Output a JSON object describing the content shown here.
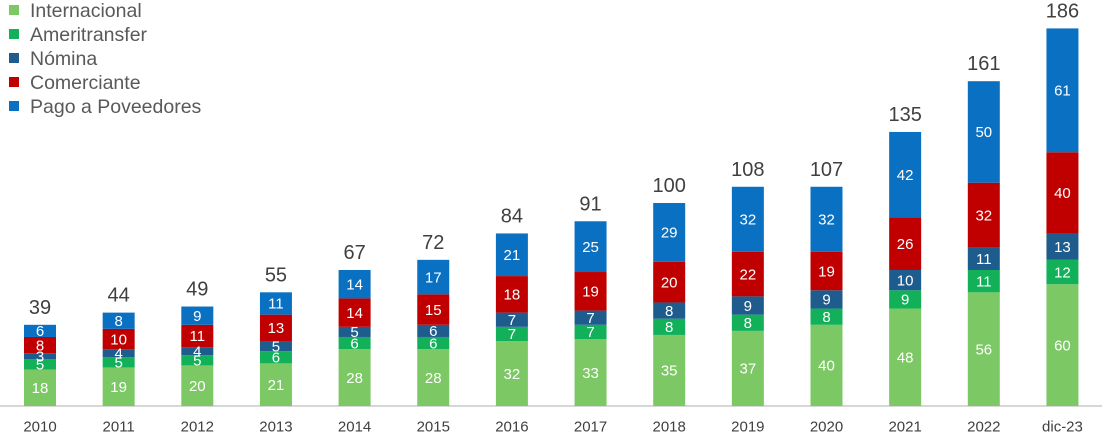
{
  "chart_data": {
    "type": "bar",
    "stacked": true,
    "categories": [
      "2010",
      "2011",
      "2012",
      "2013",
      "2014",
      "2015",
      "2016",
      "2017",
      "2018",
      "2019",
      "2020",
      "2021",
      "2022",
      "dic-23"
    ],
    "series": [
      {
        "name": "Internacional",
        "color": "#7CC865",
        "values": [
          18,
          19,
          20,
          21,
          28,
          28,
          32,
          33,
          35,
          37,
          40,
          48,
          56,
          60
        ]
      },
      {
        "name": "Ameritransfer",
        "color": "#13B05A",
        "values": [
          5,
          5,
          5,
          6,
          6,
          6,
          7,
          7,
          8,
          8,
          8,
          9,
          11,
          12
        ]
      },
      {
        "name": "Nómina",
        "color": "#1F5C8E",
        "values": [
          3,
          4,
          4,
          5,
          5,
          6,
          7,
          7,
          8,
          9,
          9,
          10,
          11,
          13
        ]
      },
      {
        "name": "Comerciante",
        "color": "#C00000",
        "values": [
          8,
          10,
          11,
          13,
          14,
          15,
          18,
          19,
          20,
          22,
          19,
          26,
          32,
          40
        ]
      },
      {
        "name": "Pago a Poveedores",
        "color": "#0A70C2",
        "values": [
          6,
          8,
          9,
          11,
          14,
          17,
          21,
          25,
          29,
          32,
          32,
          42,
          50,
          61
        ]
      }
    ],
    "totals": [
      39,
      44,
      49,
      55,
      67,
      72,
      84,
      91,
      100,
      108,
      107,
      135,
      161,
      186
    ],
    "ylim": [
      0,
      200
    ],
    "grid": false,
    "legend_position": "top-left"
  }
}
